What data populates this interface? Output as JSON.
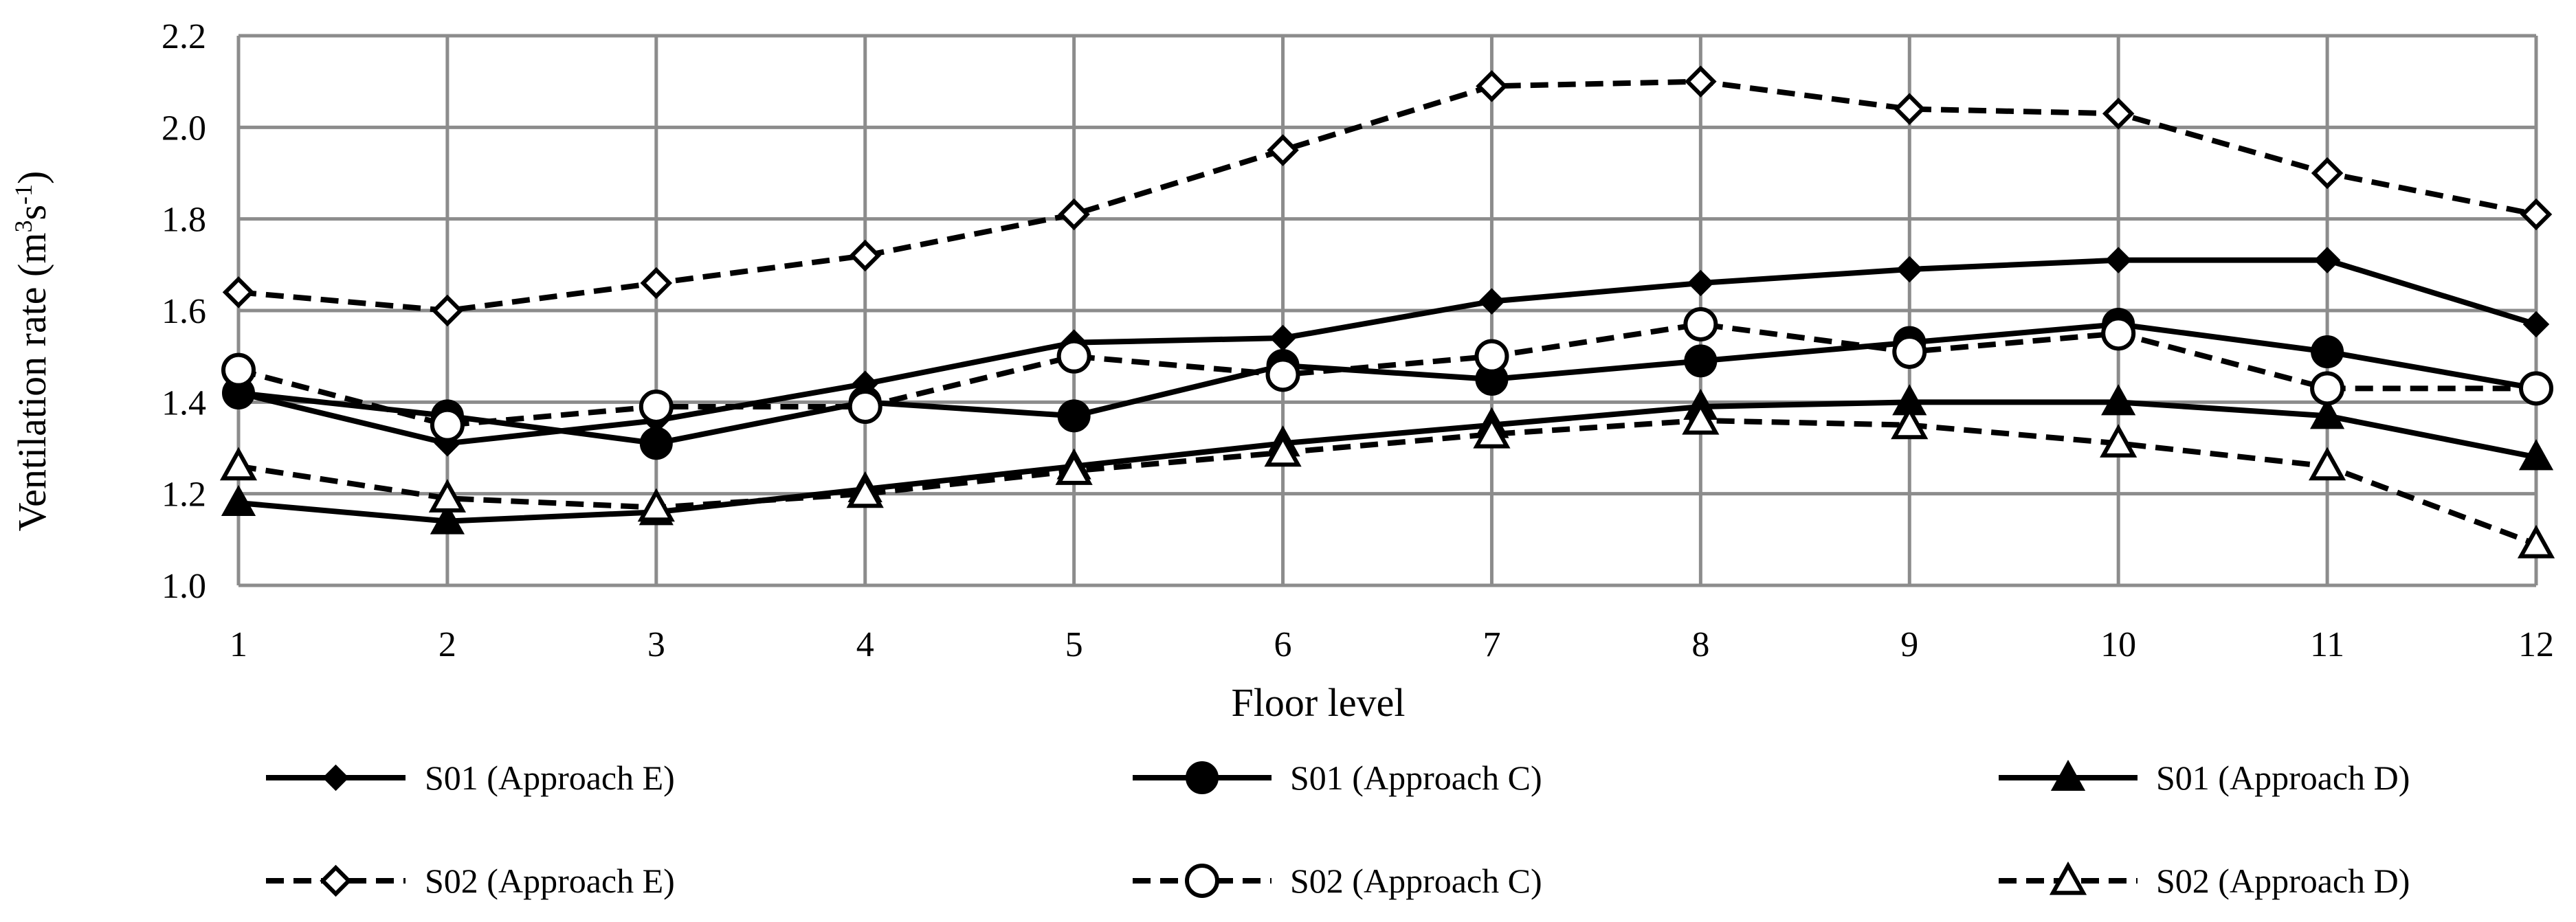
{
  "chart_data": {
    "type": "line",
    "title": "",
    "xlabel": "Floor level",
    "ylabel": "Ventilation rate (m³s⁻¹)",
    "ylabel_parts": {
      "main": "Ventilation rate (m",
      "sup1": "3",
      "mid": "s",
      "sup2": "-1",
      "end": ")"
    },
    "x": [
      1,
      2,
      3,
      4,
      5,
      6,
      7,
      8,
      9,
      10,
      11,
      12
    ],
    "x_tick_labels": [
      "1",
      "2",
      "3",
      "4",
      "5",
      "6",
      "7",
      "8",
      "9",
      "10",
      "11",
      "12"
    ],
    "ylim": [
      1.0,
      2.2
    ],
    "y_ticks": [
      1.0,
      1.2,
      1.4,
      1.6,
      1.8,
      2.0,
      2.2
    ],
    "y_tick_labels": [
      "1.0",
      "1.2",
      "1.4",
      "1.6",
      "1.8",
      "2.0",
      "2.2"
    ],
    "grid": true,
    "legend_placement": "bottom",
    "series": [
      {
        "name": "S01 (Approach E)",
        "values": [
          1.42,
          1.31,
          1.36,
          1.44,
          1.53,
          1.54,
          1.62,
          1.66,
          1.69,
          1.71,
          1.71,
          1.57
        ],
        "dash": "solid",
        "marker": "diamond-filled"
      },
      {
        "name": "S01 (Approach C)",
        "values": [
          1.42,
          1.37,
          1.31,
          1.4,
          1.37,
          1.48,
          1.45,
          1.49,
          1.53,
          1.57,
          1.51,
          1.43
        ],
        "dash": "solid",
        "marker": "circle-filled"
      },
      {
        "name": "S01 (Approach D)",
        "values": [
          1.18,
          1.14,
          1.16,
          1.21,
          1.26,
          1.31,
          1.35,
          1.39,
          1.4,
          1.4,
          1.37,
          1.28
        ],
        "dash": "solid",
        "marker": "triangle-filled"
      },
      {
        "name": "S02 (Approach E)",
        "values": [
          1.64,
          1.6,
          1.66,
          1.72,
          1.81,
          1.95,
          2.09,
          2.1,
          2.04,
          2.03,
          1.9,
          1.81
        ],
        "dash": "dashed",
        "marker": "diamond-open"
      },
      {
        "name": "S02 (Approach C)",
        "values": [
          1.47,
          1.35,
          1.39,
          1.39,
          1.5,
          1.46,
          1.5,
          1.57,
          1.51,
          1.55,
          1.43,
          1.43
        ],
        "dash": "dashed",
        "marker": "circle-open"
      },
      {
        "name": "S02 (Approach D)",
        "values": [
          1.26,
          1.19,
          1.17,
          1.2,
          1.25,
          1.29,
          1.33,
          1.36,
          1.35,
          1.31,
          1.26,
          1.09
        ],
        "dash": "dashed",
        "marker": "triangle-open"
      }
    ],
    "colors": {
      "line": "#000000",
      "grid": "#8c8c8c",
      "background": "#ffffff"
    }
  }
}
